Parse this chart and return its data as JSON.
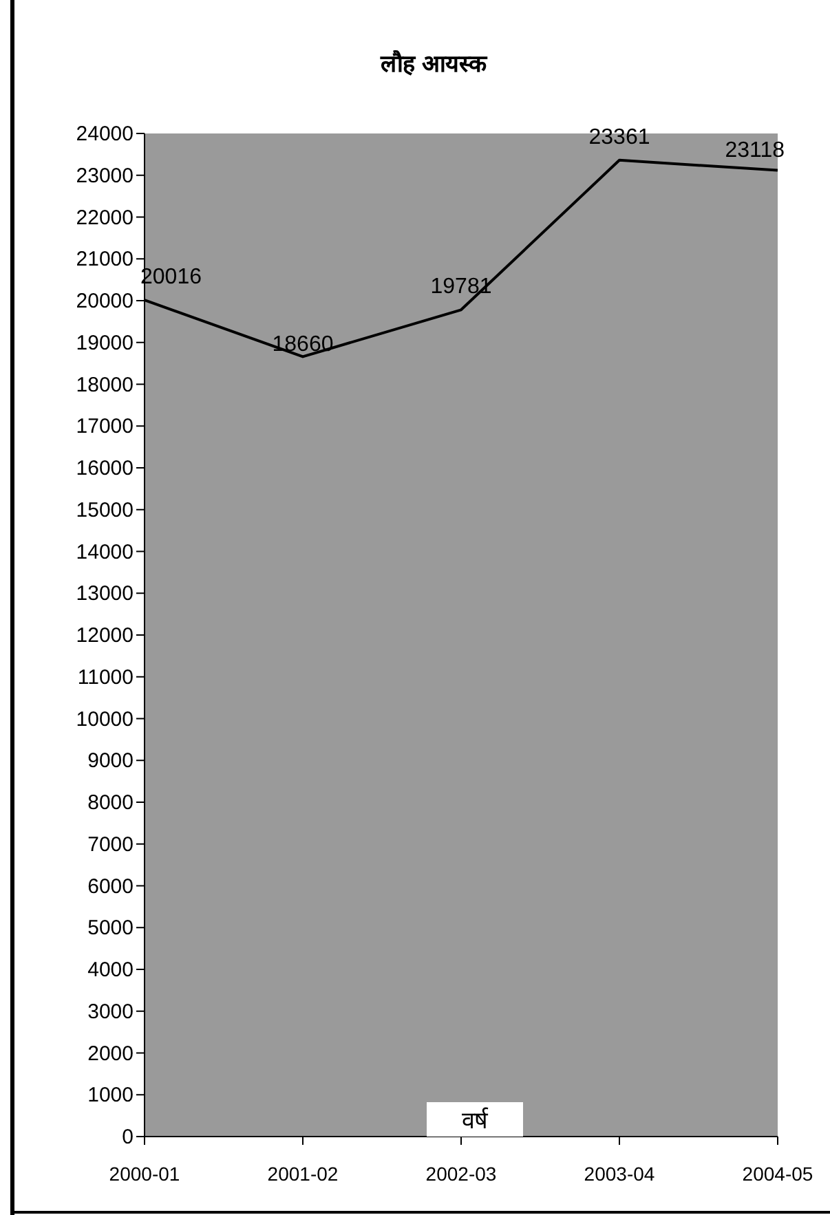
{
  "chart_data": {
    "type": "line",
    "title": "लौह आयस्क",
    "xlabel": "वर्ष",
    "categories": [
      "2000-01",
      "2001-02",
      "2002-03",
      "2003-04",
      "2004-05"
    ],
    "series": [
      {
        "color": "#000000",
        "values": [
          20016,
          18660,
          19781,
          23361,
          23118
        ]
      }
    ],
    "ylim": [
      0,
      24000
    ],
    "yticks": [
      0,
      1000,
      2000,
      3000,
      4000,
      5000,
      6000,
      7000,
      8000,
      9000,
      10000,
      11000,
      12000,
      13000,
      14000,
      15000,
      16000,
      17000,
      18000,
      19000,
      20000,
      21000,
      22000,
      23000,
      24000
    ],
    "data_labels": true,
    "grid": false,
    "marker": "none",
    "line_style": "solid"
  }
}
